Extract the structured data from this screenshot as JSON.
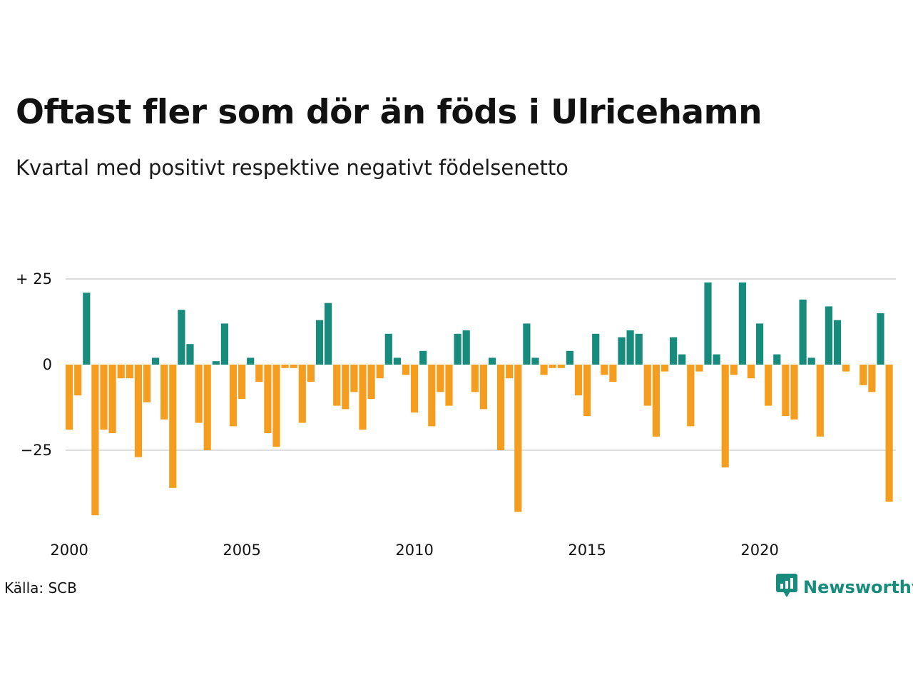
{
  "header": {
    "title": "Oftast fler som dör än föds i Ulricehamn",
    "subtitle": "Kvartal med positivt respektive negativt födelsenetto"
  },
  "footer": {
    "source": "Källa: SCB",
    "brand": "Newsworthy"
  },
  "icons": {
    "brand_logo": "newsworthy-chart-bubble-icon"
  },
  "colors": {
    "positive": "#178c7d",
    "negative": "#f59d1e",
    "grid": "#dddddd",
    "brand": "#178c7d"
  },
  "chart_data": {
    "type": "bar",
    "title": "Oftast fler som dör än föds i Ulricehamn",
    "subtitle": "Kvartal med positivt respektive negativt födelsenetto",
    "x_start": "2000 Q1",
    "x_period": "quarter",
    "x_ticks": [
      "2000",
      "2005",
      "2010",
      "2015",
      "2020"
    ],
    "y_ticks": [
      {
        "value": 25,
        "label": "+ 25"
      },
      {
        "value": 0,
        "label": "0"
      },
      {
        "value": -25,
        "label": "−25"
      }
    ],
    "ylim": [
      -45,
      25
    ],
    "grid": true,
    "legend": "none",
    "values": [
      -19,
      -9,
      21,
      -44,
      -19,
      -20,
      -4,
      -4,
      -27,
      -11,
      2,
      -16,
      -36,
      16,
      6,
      -17,
      -25,
      1,
      12,
      -18,
      -10,
      2,
      -5,
      -20,
      -24,
      -1,
      -1,
      -17,
      -5,
      13,
      18,
      -12,
      -13,
      -8,
      -19,
      -10,
      -4,
      9,
      2,
      -3,
      -14,
      4,
      -18,
      -8,
      -12,
      9,
      10,
      -8,
      -13,
      2,
      -25,
      -4,
      -43,
      12,
      2,
      -3,
      -1,
      -1,
      4,
      -9,
      -15,
      9,
      -3,
      -5,
      8,
      10,
      9,
      -12,
      -21,
      -2,
      8,
      3,
      -18,
      -2,
      24,
      3,
      -30,
      -3,
      24,
      -4,
      12,
      -12,
      3,
      -15,
      -16,
      19,
      2,
      -21,
      17,
      13,
      -2,
      0,
      -6,
      -8,
      15,
      -40
    ]
  }
}
